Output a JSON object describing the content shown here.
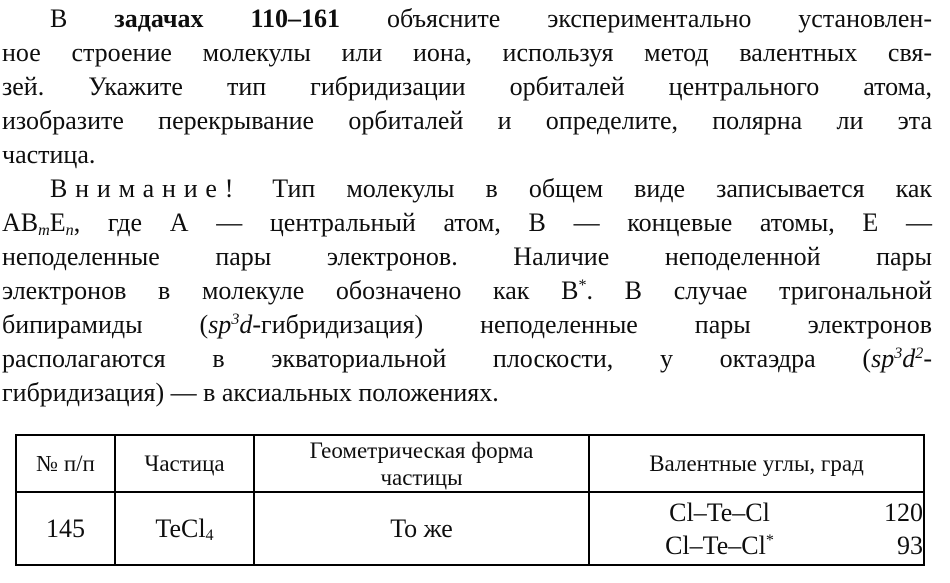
{
  "page": {
    "background": "#ffffff",
    "text_color": "#0e0e0e",
    "border_color": "#000000"
  },
  "paragraphs": [
    {
      "name": "intro",
      "lines": [
        {
          "seg": [
            {
              "t": "В "
            },
            {
              "t": "задачах 110–161",
              "b": 1
            },
            {
              "t": " объясните экспериментально установлен-"
            }
          ]
        },
        {
          "seg": [
            {
              "t": "ное строение молекулы или иона, используя метод валентных свя-"
            }
          ]
        },
        {
          "seg": [
            {
              "t": "зей. Укажите тип гибридизации орбиталей центрального атома,"
            }
          ]
        },
        {
          "seg": [
            {
              "t": "изобразите перекрывание орбиталей и определите, полярна ли эта"
            }
          ]
        },
        {
          "seg": [
            {
              "t": "частица."
            }
          ],
          "last": 1
        }
      ]
    },
    {
      "name": "attention",
      "lines": [
        {
          "seg": [
            {
              "t": "Внимание!",
              "sp": 1
            },
            {
              "t": " Тип молекулы в общем виде записывается как"
            }
          ]
        },
        {
          "seg": [
            {
              "t": "AB"
            },
            {
              "t": "m",
              "i": 1,
              "sub": 1
            },
            {
              "t": "E"
            },
            {
              "t": "n",
              "i": 1,
              "sub": 1
            },
            {
              "t": ", где А — центральный атом, В — концевые атомы, Е —"
            }
          ]
        },
        {
          "seg": [
            {
              "t": "неподеленные пары электронов. Наличие неподеленной пары"
            }
          ]
        },
        {
          "seg": [
            {
              "t": "электронов в молекуле обозначено как В"
            },
            {
              "t": "*",
              "sup": 1
            },
            {
              "t": ". В случае тригональной"
            }
          ]
        },
        {
          "seg": [
            {
              "t": "бипирамиды ("
            },
            {
              "t": "sp",
              "i": 1
            },
            {
              "t": "3",
              "i": 1,
              "sup": 1
            },
            {
              "t": "d",
              "i": 1
            },
            {
              "t": "-гибридизация) неподеленные пары электронов"
            }
          ]
        },
        {
          "seg": [
            {
              "t": "располагаются в экваториальной плоскости, у октаэдра ("
            },
            {
              "t": "sp",
              "i": 1
            },
            {
              "t": "3",
              "i": 1,
              "sup": 1
            },
            {
              "t": "d",
              "i": 1
            },
            {
              "t": "2",
              "i": 1,
              "sup": 1
            },
            {
              "t": "-"
            }
          ]
        },
        {
          "seg": [
            {
              "t": "гибридизация) — в аксиальных положениях."
            }
          ],
          "last": 1
        }
      ]
    }
  ],
  "table": {
    "headers": {
      "number": "№ п/п",
      "particle": "Частица",
      "shape": "Геометрическая форма\nчастицы",
      "angles": "Валентные углы, град"
    },
    "row": {
      "number": "145",
      "particle_segments": [
        {
          "t": "TeCl"
        },
        {
          "t": "4",
          "sub": 1
        }
      ],
      "shape": "То же",
      "angles": [
        {
          "bond_segments": [
            {
              "t": "Cl–Te–Cl"
            }
          ],
          "value": "120"
        },
        {
          "bond_segments": [
            {
              "t": "Cl–Te–Cl"
            },
            {
              "t": "*",
              "sup": 1
            }
          ],
          "value": "93"
        }
      ]
    }
  }
}
